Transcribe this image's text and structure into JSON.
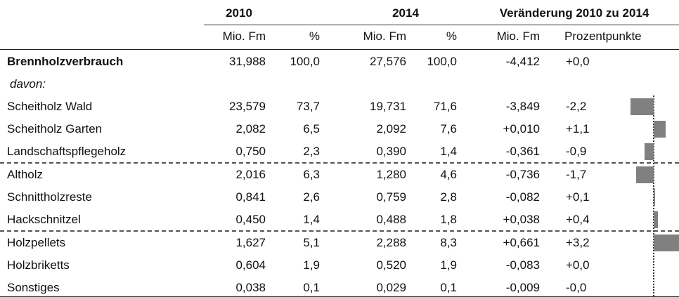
{
  "table": {
    "groups": [
      "2010",
      "2014",
      "Veränderung 2010 zu 2014"
    ],
    "subheads": [
      "Mio. Fm",
      "%",
      "Mio. Fm",
      "%",
      "Mio. Fm",
      "Prozentpunkte"
    ],
    "rows": [
      [
        "Brennholzverbrauch",
        "31,988",
        "100,0",
        "27,576",
        "100,0",
        "-4,412",
        "+0,0"
      ],
      [
        "davon:"
      ],
      [
        "Scheitholz Wald",
        "23,579",
        "73,7",
        "19,731",
        "71,6",
        "-3,849",
        "-2,2"
      ],
      [
        "Scheitholz Garten",
        "2,082",
        "6,5",
        "2,092",
        "7,6",
        "+0,010",
        "+1,1"
      ],
      [
        "Landschaftspflegeholz",
        "0,750",
        "2,3",
        "0,390",
        "1,4",
        "-0,361",
        "-0,9"
      ],
      [
        "Altholz",
        "2,016",
        "6,3",
        "1,280",
        "4,6",
        "-0,736",
        "-1,7"
      ],
      [
        "Schnittholzreste",
        "0,841",
        "2,6",
        "0,759",
        "2,8",
        "-0,082",
        "+0,1"
      ],
      [
        "Hackschnitzel",
        "0,450",
        "1,4",
        "0,488",
        "1,8",
        "+0,038",
        "+0,4"
      ],
      [
        "Holzpellets",
        "1,627",
        "5,1",
        "2,288",
        "8,3",
        "+0,661",
        "+3,2"
      ],
      [
        "Holzbriketts",
        "0,604",
        "1,9",
        "0,520",
        "1,9",
        "-0,083",
        "+0,0"
      ],
      [
        "Sonstiges",
        "0,038",
        "0,1",
        "0,029",
        "0,1",
        "-0,009",
        "-0,0"
      ]
    ]
  }
}
